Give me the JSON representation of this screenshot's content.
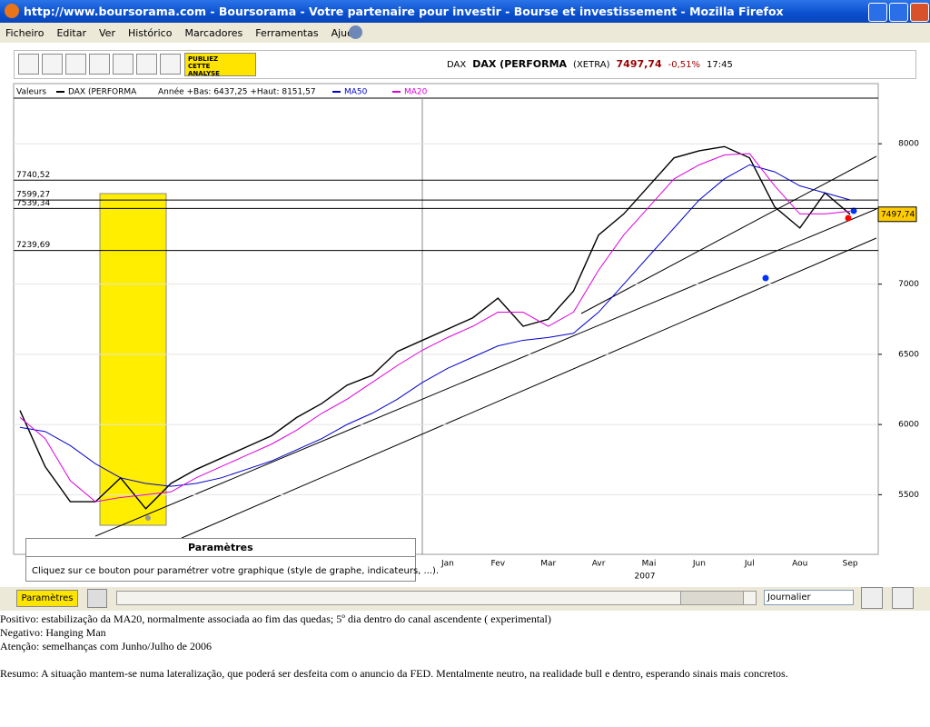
{
  "window": {
    "title": "http://www.boursorama.com - Boursorama - Votre partenaire pour investir - Bourse et investissement - Mozilla Firefox",
    "menu": [
      "Ficheiro",
      "Editar",
      "Ver",
      "Histórico",
      "Marcadores",
      "Ferramentas",
      "Ajuda"
    ]
  },
  "toolbar": {
    "publish_top": "PUBLIEZ",
    "publish_bottom": "CETTE ANALYSE",
    "quote": {
      "symbol": "DAX",
      "name": "DAX (PERFORMA",
      "market": "(XETRA)",
      "price": "7497,74",
      "change": "-0,51%",
      "time": "17:45"
    }
  },
  "chart_data": {
    "type": "line",
    "legend_title": "Valeurs",
    "annotation": "Année +Bas: 6437,25 +Haut: 8151,57",
    "xlabel": "2007",
    "categories": [
      null,
      null,
      null,
      null,
      null,
      null,
      null,
      null,
      null,
      null,
      null,
      null,
      null,
      null,
      null,
      null,
      null,
      "Jan",
      null,
      "Fev",
      null,
      "Mar",
      null,
      "Avr",
      null,
      "Mai",
      null,
      "Jun",
      null,
      "Jul",
      null,
      "Aou",
      null,
      "Sep"
    ],
    "series": [
      {
        "name": "DAX (PERFORMA",
        "color": "#000000",
        "values": [
          6100,
          5700,
          5450,
          5450,
          5620,
          5400,
          5580,
          5680,
          5760,
          5840,
          5920,
          6050,
          6150,
          6280,
          6350,
          6520,
          6600,
          6680,
          6760,
          6900,
          6700,
          6750,
          6950,
          7350,
          7500,
          7700,
          7900,
          7950,
          7980,
          7900,
          7550,
          7400,
          7650,
          7497.74
        ]
      },
      {
        "name": "MA50",
        "color": "#0000cc",
        "values": [
          5980,
          5950,
          5850,
          5720,
          5620,
          5580,
          5560,
          5580,
          5620,
          5680,
          5740,
          5820,
          5900,
          6000,
          6080,
          6180,
          6300,
          6400,
          6480,
          6560,
          6600,
          6620,
          6650,
          6800,
          7000,
          7200,
          7400,
          7600,
          7750,
          7850,
          7800,
          7700,
          7650,
          7600
        ]
      },
      {
        "name": "MA20",
        "color": "#dd00dd",
        "values": [
          6050,
          5900,
          5600,
          5450,
          5480,
          5500,
          5520,
          5620,
          5700,
          5780,
          5860,
          5960,
          6080,
          6180,
          6300,
          6420,
          6530,
          6620,
          6700,
          6800,
          6800,
          6700,
          6800,
          7100,
          7350,
          7550,
          7750,
          7850,
          7920,
          7930,
          7700,
          7500,
          7500,
          7520
        ]
      }
    ],
    "levels": [
      {
        "value": 7740.52,
        "label": "7740,52"
      },
      {
        "value": 7599.27,
        "label": "7599,27"
      },
      {
        "value": 7539.34,
        "label": "7539,34"
      },
      {
        "value": 7239.69,
        "label": "7239,69"
      }
    ],
    "last": {
      "value": 7497.74,
      "label": "7497,74"
    },
    "ylim": [
      5075,
      8325
    ],
    "yticks": [
      5500,
      6000,
      6500,
      7000,
      8000
    ],
    "grid": true
  },
  "params": {
    "title": "Paramètres",
    "text": "Cliquez sur ce bouton pour paramétrer votre graphique (style de graphe, indicateurs, ...).",
    "button": "Paramètres",
    "period": "Journalier"
  },
  "notes": [
    "Positivo: estabilização da MA20, normalmente associada ao fim das quedas; 5º dia dentro do canal ascendente ( experimental)",
    "Negativo: Hanging Man",
    "Atenção: semelhanças com Junho/Julho de 2006",
    "Resumo: A situação mantem-se numa lateralização, que poderá ser desfeita com o anuncio da FED. Mentalmente neutro, na realidade bull e dentro, esperando sinais mais concretos."
  ]
}
